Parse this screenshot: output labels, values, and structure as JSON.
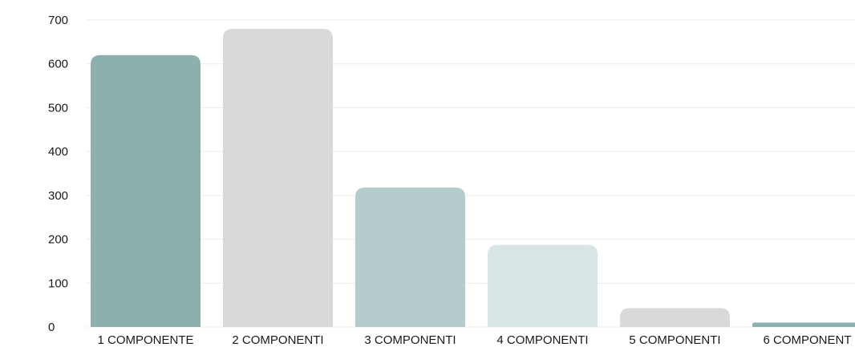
{
  "chart_data": {
    "type": "bar",
    "title": "",
    "xlabel": "",
    "ylabel": "",
    "categories": [
      "1 COMPONENTE",
      "2 COMPONENTI",
      "3 COMPONENTI",
      "4 COMPONENTI",
      "5 COMPONENTI",
      "6 COMPONENT"
    ],
    "values": [
      620,
      680,
      318,
      187,
      43,
      10
    ],
    "bar_colors": [
      "#8ab1ae",
      "#d9d9d9",
      "#b4cdcc",
      "#d9e5e4",
      "#d9d9d9",
      "#8ab1ae"
    ],
    "ylim": [
      0,
      700
    ],
    "yticks": [
      0,
      100,
      200,
      300,
      400,
      500,
      600,
      700
    ],
    "grid": true,
    "legend": "none"
  }
}
